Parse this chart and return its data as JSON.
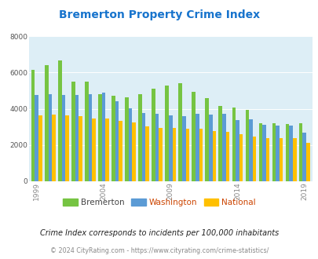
{
  "title": "Bremerton Property Crime Index",
  "title_color": "#1874CD",
  "years": [
    1999,
    2000,
    2001,
    2002,
    2003,
    2004,
    2005,
    2006,
    2007,
    2008,
    2009,
    2010,
    2011,
    2012,
    2013,
    2014,
    2015,
    2016,
    2017,
    2018,
    2019
  ],
  "bremerton": [
    6150,
    6400,
    6650,
    5500,
    5500,
    4800,
    4720,
    4620,
    4800,
    5100,
    5300,
    5430,
    4950,
    4600,
    4150,
    4050,
    3950,
    3200,
    3220,
    3150,
    3200
  ],
  "washington": [
    4750,
    4800,
    4780,
    4750,
    4800,
    4880,
    4430,
    4020,
    3780,
    3730,
    3630,
    3600,
    3730,
    3680,
    3730,
    3380,
    3430,
    3120,
    3080,
    3080,
    2680
  ],
  "national": [
    3640,
    3680,
    3640,
    3580,
    3480,
    3460,
    3350,
    3230,
    3050,
    2950,
    2940,
    2920,
    2900,
    2780,
    2730,
    2600,
    2480,
    2360,
    2360,
    2360,
    2110
  ],
  "color_bremerton": "#76c442",
  "color_washington": "#5b9bd5",
  "color_national": "#ffc000",
  "plot_area_bg": "#ddeef6",
  "yticks": [
    0,
    2000,
    4000,
    6000,
    8000
  ],
  "ylim": [
    0,
    8000
  ],
  "xlabel_ticks": [
    1999,
    2004,
    2009,
    2014,
    2019
  ],
  "subtitle": "Crime Index corresponds to incidents per 100,000 inhabitants",
  "footer": "© 2024 CityRating.com - https://www.cityrating.com/crime-statistics/",
  "subtitle_color": "#222222",
  "footer_color": "#888888",
  "legend_labels": [
    "Bremerton",
    "Washington",
    "National"
  ],
  "legend_text_colors": [
    "#444444",
    "#cc4400",
    "#cc4400"
  ]
}
